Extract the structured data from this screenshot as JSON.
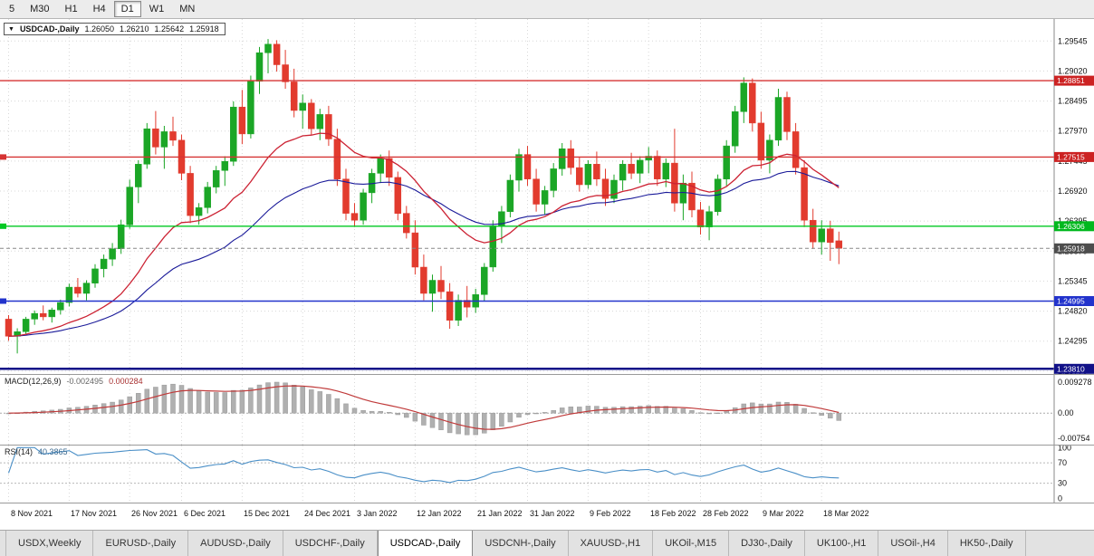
{
  "toolbar": {
    "timeframes": [
      {
        "label": "5",
        "active": false
      },
      {
        "label": "M30",
        "active": false
      },
      {
        "label": "H1",
        "active": false
      },
      {
        "label": "H4",
        "active": false
      },
      {
        "label": "D1",
        "active": true
      },
      {
        "label": "W1",
        "active": false
      },
      {
        "label": "MN",
        "active": false
      }
    ]
  },
  "chart_header": {
    "symbol": "USDCAD-,Daily",
    "open": "1.26050",
    "high": "1.26210",
    "low": "1.25642",
    "close": "1.25918"
  },
  "chart_data": {
    "type": "candlestick",
    "symbol": "USDCAD-,Daily",
    "x_labels": [
      "8 Nov 2021",
      "17 Nov 2021",
      "26 Nov 2021",
      "6 Dec 2021",
      "15 Dec 2021",
      "24 Dec 2021",
      "3 Jan 2022",
      "12 Jan 2022",
      "21 Jan 2022",
      "31 Jan 2022",
      "9 Feb 2022",
      "18 Feb 2022",
      "28 Feb 2022",
      "9 Mar 2022",
      "18 Mar 2022"
    ],
    "x_label_indices": [
      0,
      7,
      14,
      20,
      27,
      34,
      40,
      47,
      54,
      60,
      67,
      74,
      80,
      87,
      94
    ],
    "y_axis_ticks": [
      "1.29545",
      "1.29020",
      "1.28495",
      "1.27970",
      "1.27445",
      "1.26920",
      "1.26395",
      "1.25870",
      "1.25345",
      "1.24820",
      "1.24295",
      "1.23770"
    ],
    "y_range": [
      1.2372,
      1.2993
    ],
    "ma_periods": [
      20,
      40
    ],
    "candles": [
      [
        1.2468,
        1.2475,
        1.243,
        1.2438
      ],
      [
        1.2438,
        1.2452,
        1.2408,
        1.2446
      ],
      [
        1.2446,
        1.2472,
        1.2441,
        1.2468
      ],
      [
        1.2468,
        1.2483,
        1.2458,
        1.2478
      ],
      [
        1.2478,
        1.2492,
        1.2466,
        1.2472
      ],
      [
        1.2472,
        1.2488,
        1.2462,
        1.2484
      ],
      [
        1.2484,
        1.2502,
        1.2476,
        1.2497
      ],
      [
        1.2497,
        1.253,
        1.249,
        1.2524
      ],
      [
        1.2524,
        1.254,
        1.2506,
        1.2513
      ],
      [
        1.2513,
        1.2536,
        1.2501,
        1.2531
      ],
      [
        1.2531,
        1.2564,
        1.2523,
        1.2556
      ],
      [
        1.2556,
        1.2581,
        1.2541,
        1.2573
      ],
      [
        1.2573,
        1.2601,
        1.2561,
        1.2591
      ],
      [
        1.2591,
        1.2642,
        1.2582,
        1.2633
      ],
      [
        1.2633,
        1.2712,
        1.2626,
        1.2699
      ],
      [
        1.2699,
        1.2746,
        1.2671,
        1.2739
      ],
      [
        1.2739,
        1.2811,
        1.2731,
        1.2801
      ],
      [
        1.2801,
        1.2832,
        1.2756,
        1.2769
      ],
      [
        1.2769,
        1.2806,
        1.2731,
        1.2796
      ],
      [
        1.2796,
        1.2822,
        1.2771,
        1.2781
      ],
      [
        1.2781,
        1.2791,
        1.2711,
        1.2723
      ],
      [
        1.2723,
        1.2736,
        1.2636,
        1.2649
      ],
      [
        1.2649,
        1.2671,
        1.2633,
        1.2663
      ],
      [
        1.2663,
        1.2708,
        1.2653,
        1.2699
      ],
      [
        1.2699,
        1.2736,
        1.2688,
        1.2728
      ],
      [
        1.2728,
        1.2753,
        1.2701,
        1.2744
      ],
      [
        1.2744,
        1.2849,
        1.2736,
        1.2839
      ],
      [
        1.2839,
        1.2869,
        1.2774,
        1.2792
      ],
      [
        1.2792,
        1.2894,
        1.2784,
        1.2884
      ],
      [
        1.2884,
        1.2944,
        1.2862,
        1.2934
      ],
      [
        1.2934,
        1.2958,
        1.2898,
        1.2949
      ],
      [
        1.2949,
        1.2956,
        1.2901,
        1.2913
      ],
      [
        1.2913,
        1.2939,
        1.2871,
        1.2883
      ],
      [
        1.2883,
        1.2906,
        1.2821,
        1.2833
      ],
      [
        1.2833,
        1.2861,
        1.2801,
        1.2846
      ],
      [
        1.2846,
        1.2853,
        1.2791,
        1.2801
      ],
      [
        1.2801,
        1.2836,
        1.2781,
        1.2826
      ],
      [
        1.2826,
        1.2841,
        1.2771,
        1.2783
      ],
      [
        1.2783,
        1.2801,
        1.2701,
        1.2713
      ],
      [
        1.2713,
        1.2731,
        1.2641,
        1.2653
      ],
      [
        1.2653,
        1.2671,
        1.2629,
        1.2641
      ],
      [
        1.2641,
        1.2696,
        1.2633,
        1.2689
      ],
      [
        1.2689,
        1.2731,
        1.2671,
        1.2723
      ],
      [
        1.2723,
        1.2756,
        1.2706,
        1.2749
      ],
      [
        1.2749,
        1.2763,
        1.2701,
        1.2716
      ],
      [
        1.2716,
        1.2726,
        1.2641,
        1.2653
      ],
      [
        1.2653,
        1.2666,
        1.2609,
        1.2619
      ],
      [
        1.2619,
        1.2641,
        1.2546,
        1.2559
      ],
      [
        1.2559,
        1.2581,
        1.2501,
        1.2513
      ],
      [
        1.2513,
        1.2546,
        1.2481,
        1.2536
      ],
      [
        1.2536,
        1.2561,
        1.2503,
        1.2516
      ],
      [
        1.2516,
        1.2531,
        1.2451,
        1.2466
      ],
      [
        1.2466,
        1.2511,
        1.2456,
        1.2501
      ],
      [
        1.2501,
        1.2526,
        1.2471,
        1.2489
      ],
      [
        1.2489,
        1.2521,
        1.2479,
        1.2511
      ],
      [
        1.2511,
        1.2566,
        1.2499,
        1.2559
      ],
      [
        1.2559,
        1.2641,
        1.2551,
        1.2631
      ],
      [
        1.2631,
        1.2666,
        1.2601,
        1.2656
      ],
      [
        1.2656,
        1.2721,
        1.2646,
        1.2711
      ],
      [
        1.2711,
        1.2766,
        1.2691,
        1.2756
      ],
      [
        1.2756,
        1.2771,
        1.2701,
        1.2713
      ],
      [
        1.2713,
        1.2731,
        1.2656,
        1.2669
      ],
      [
        1.2669,
        1.2701,
        1.2651,
        1.2693
      ],
      [
        1.2693,
        1.2741,
        1.2681,
        1.2731
      ],
      [
        1.2731,
        1.2776,
        1.2719,
        1.2766
      ],
      [
        1.2766,
        1.2781,
        1.2721,
        1.2733
      ],
      [
        1.2733,
        1.2751,
        1.2691,
        1.2703
      ],
      [
        1.2703,
        1.2746,
        1.2696,
        1.2739
      ],
      [
        1.2739,
        1.2761,
        1.2701,
        1.2713
      ],
      [
        1.2713,
        1.2731,
        1.2666,
        1.2679
      ],
      [
        1.2679,
        1.2721,
        1.2671,
        1.2711
      ],
      [
        1.2711,
        1.2746,
        1.2693,
        1.2739
      ],
      [
        1.2739,
        1.2759,
        1.2713,
        1.2723
      ],
      [
        1.2723,
        1.2753,
        1.2706,
        1.2746
      ],
      [
        1.2746,
        1.2769,
        1.2723,
        1.2753
      ],
      [
        1.2753,
        1.2763,
        1.2701,
        1.2713
      ],
      [
        1.2713,
        1.2749,
        1.2699,
        1.2741
      ],
      [
        1.2741,
        1.2801,
        1.2656,
        1.2671
      ],
      [
        1.2671,
        1.2721,
        1.2641,
        1.2706
      ],
      [
        1.2706,
        1.2726,
        1.2646,
        1.2659
      ],
      [
        1.2659,
        1.2673,
        1.2616,
        1.2629
      ],
      [
        1.2629,
        1.2666,
        1.2606,
        1.2656
      ],
      [
        1.2656,
        1.2721,
        1.2649,
        1.2713
      ],
      [
        1.2713,
        1.2781,
        1.2701,
        1.2771
      ],
      [
        1.2771,
        1.2841,
        1.2759,
        1.2831
      ],
      [
        1.2831,
        1.2891,
        1.2811,
        1.2881
      ],
      [
        1.2881,
        1.2889,
        1.2796,
        1.2811
      ],
      [
        1.2811,
        1.2831,
        1.2731,
        1.2746
      ],
      [
        1.2746,
        1.2791,
        1.2723,
        1.2781
      ],
      [
        1.2781,
        1.2871,
        1.2771,
        1.2856
      ],
      [
        1.2856,
        1.2866,
        1.2781,
        1.2796
      ],
      [
        1.2796,
        1.2811,
        1.2721,
        1.2733
      ],
      [
        1.2733,
        1.2746,
        1.2629,
        1.2641
      ],
      [
        1.2641,
        1.2661,
        1.2591,
        1.2603
      ],
      [
        1.2603,
        1.2641,
        1.2581,
        1.2626
      ],
      [
        1.2626,
        1.264,
        1.257,
        1.2602
      ],
      [
        1.2605,
        1.2621,
        1.25642,
        1.25918
      ]
    ],
    "h_lines": [
      {
        "price": "1.28851",
        "color": "#d63333",
        "tag_bg": "#cc2222",
        "width": 1.4,
        "left_marker": false
      },
      {
        "price": "1.27515",
        "color": "#d63333",
        "tag_bg": "#cc2222",
        "width": 1.4,
        "left_marker": true
      },
      {
        "price": "1.26306",
        "color": "#00c822",
        "tag_bg": "#00b81e",
        "width": 1.4,
        "left_marker": true
      },
      {
        "price": "1.24995",
        "color": "#2233cc",
        "tag_bg": "#2233cc",
        "width": 1.4,
        "left_marker": true
      },
      {
        "price": "1.23810",
        "color": "#111188",
        "tag_bg": "#111188",
        "width": 2.5,
        "left_marker": false
      }
    ],
    "current_price": {
      "value": "1.25918",
      "tag_bg": "#4d4d4d"
    },
    "colors": {
      "up": "#1ba626",
      "down": "#e23b2e",
      "ma_fast": "#cc2233",
      "ma_slow": "#1a1a99",
      "grid": "#d8d8d8",
      "macd_hist": "#b0b0b0",
      "macd_signal": "#c03a3a",
      "rsi_line": "#4a8fc7"
    }
  },
  "macd": {
    "label": "MACD(12,26,9)",
    "main_value": "-0.002495",
    "signal_value": "0.000284",
    "axis": [
      "0.009278",
      "0.00",
      "-0.00754"
    ],
    "y_range": [
      -0.0095,
      0.0115
    ]
  },
  "rsi": {
    "label": "RSI(14)",
    "value": "40.3865",
    "axis": [
      "100",
      "70",
      "30",
      "0"
    ],
    "levels": [
      70,
      30
    ]
  },
  "tabs": [
    {
      "label": "USDX,Weekly",
      "active": false
    },
    {
      "label": "EURUSD-,Daily",
      "active": false
    },
    {
      "label": "AUDUSD-,Daily",
      "active": false
    },
    {
      "label": "USDCHF-,Daily",
      "active": false
    },
    {
      "label": "USDCAD-,Daily",
      "active": true
    },
    {
      "label": "USDCNH-,Daily",
      "active": false
    },
    {
      "label": "XAUUSD-,H1",
      "active": false
    },
    {
      "label": "UKOil-,M15",
      "active": false
    },
    {
      "label": "DJ30-,Daily",
      "active": false
    },
    {
      "label": "UK100-,H1",
      "active": false
    },
    {
      "label": "USOil-,H4",
      "active": false
    },
    {
      "label": "HK50-,Daily",
      "active": false
    }
  ]
}
